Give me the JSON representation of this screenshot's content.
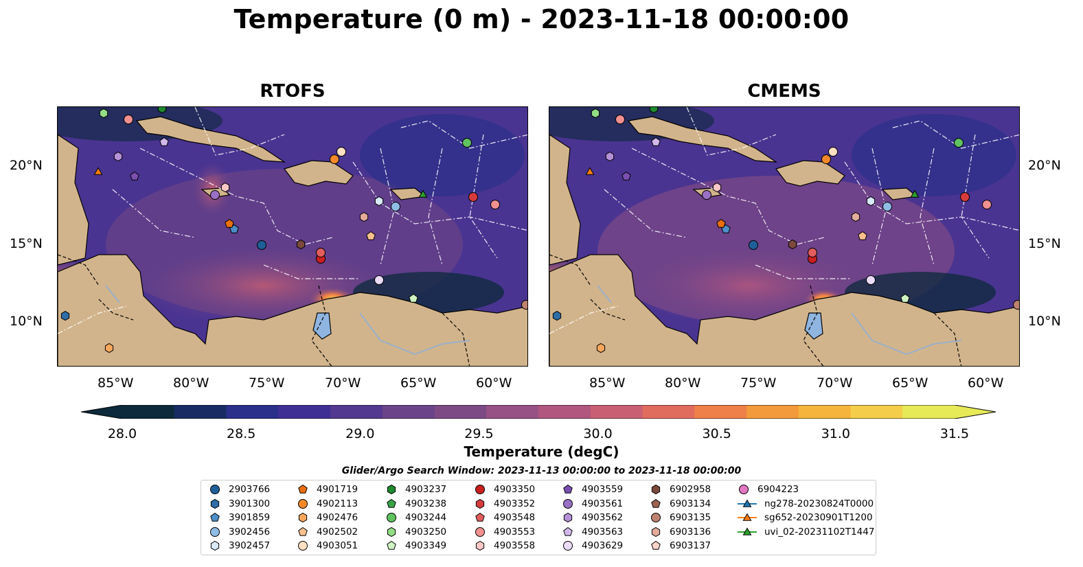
{
  "title": "Temperature (0 m) - 2023-11-18 00:00:00",
  "panels": [
    {
      "title": "RTOFS"
    },
    {
      "title": "CMEMS"
    }
  ],
  "lat_ticks": [
    "20°N",
    "15°N",
    "10°N"
  ],
  "lon_ticks": [
    "85°W",
    "80°W",
    "75°W",
    "70°W",
    "65°W",
    "60°W"
  ],
  "colorbar": {
    "label": "Temperature (degC)",
    "ticks": [
      "28.0",
      "28.5",
      "29.0",
      "29.5",
      "30.0",
      "30.5",
      "31.0",
      "31.5"
    ],
    "range": [
      28.0,
      31.5
    ],
    "colors": [
      "#0c2a3b",
      "#182c63",
      "#2b308a",
      "#3e2f95",
      "#53398f",
      "#6a4388",
      "#7e4a86",
      "#975185",
      "#b0567f",
      "#c95f72",
      "#e06c5e",
      "#ef8049",
      "#f39a3c",
      "#f5b43c",
      "#f4ce4a",
      "#e7ea57"
    ]
  },
  "legend": {
    "title": "Glider/Argo Search Window: 2023-11-13 00:00:00 to 2023-11-18 00:00:00",
    "columns": [
      [
        {
          "label": "2903766",
          "marker": "circle",
          "color": "#1f5f99"
        },
        {
          "label": "3901300",
          "marker": "hexagon",
          "color": "#2f6ea6"
        },
        {
          "label": "3901859",
          "marker": "pentagon",
          "color": "#4c8ec9"
        },
        {
          "label": "3902456",
          "marker": "circle",
          "color": "#8fbde6"
        },
        {
          "label": "3902457",
          "marker": "hexagon",
          "color": "#d8e9f7"
        }
      ],
      [
        {
          "label": "4901719",
          "marker": "pentagon",
          "color": "#e96f0f"
        },
        {
          "label": "4902113",
          "marker": "circle",
          "color": "#f4892b"
        },
        {
          "label": "4902476",
          "marker": "hexagon",
          "color": "#f9a65c"
        },
        {
          "label": "4902502",
          "marker": "pentagon",
          "color": "#fbc08e"
        },
        {
          "label": "4903051",
          "marker": "circle",
          "color": "#fde0c2"
        }
      ],
      [
        {
          "label": "4903237",
          "marker": "hexagon",
          "color": "#1f8a2e"
        },
        {
          "label": "4903238",
          "marker": "pentagon",
          "color": "#3aa346"
        },
        {
          "label": "4903244",
          "marker": "circle",
          "color": "#5fc35f"
        },
        {
          "label": "4903250",
          "marker": "hexagon",
          "color": "#93dd85"
        },
        {
          "label": "4903349",
          "marker": "pentagon",
          "color": "#cff3c2"
        }
      ],
      [
        {
          "label": "4903350",
          "marker": "circle",
          "color": "#c91f1f"
        },
        {
          "label": "4903352",
          "marker": "hexagon",
          "color": "#d63b3b"
        },
        {
          "label": "4903548",
          "marker": "pentagon",
          "color": "#e25d5d"
        },
        {
          "label": "4903553",
          "marker": "circle",
          "color": "#f09090"
        },
        {
          "label": "4903558",
          "marker": "hexagon",
          "color": "#fbc7c7"
        }
      ],
      [
        {
          "label": "4903559",
          "marker": "pentagon",
          "color": "#7a4fb0"
        },
        {
          "label": "4903561",
          "marker": "circle",
          "color": "#9a70c6"
        },
        {
          "label": "4903562",
          "marker": "hexagon",
          "color": "#b592d8"
        },
        {
          "label": "4903563",
          "marker": "pentagon",
          "color": "#d2b8ea"
        },
        {
          "label": "4903629",
          "marker": "circle",
          "color": "#eadcf7"
        }
      ],
      [
        {
          "label": "6902958",
          "marker": "hexagon",
          "color": "#7b4a3c"
        },
        {
          "label": "6903134",
          "marker": "pentagon",
          "color": "#9c6252"
        },
        {
          "label": "6903135",
          "marker": "circle",
          "color": "#bd8270"
        },
        {
          "label": "6903136",
          "marker": "hexagon",
          "color": "#e2ab9a"
        },
        {
          "label": "6903137",
          "marker": "pentagon",
          "color": "#fbd4c8"
        }
      ],
      [
        {
          "label": "6904223",
          "marker": "circle",
          "color": "#e377c2"
        },
        {
          "label": "ng278-20230824T0000",
          "marker": "triangle-line",
          "color": "#1f77b4"
        },
        {
          "label": "sg652-20230901T1200",
          "marker": "triangle-line",
          "color": "#ff7f0e"
        },
        {
          "label": "uvi_02-20231102T1447",
          "marker": "triangle-line",
          "color": "#2ca02c"
        }
      ]
    ]
  }
}
